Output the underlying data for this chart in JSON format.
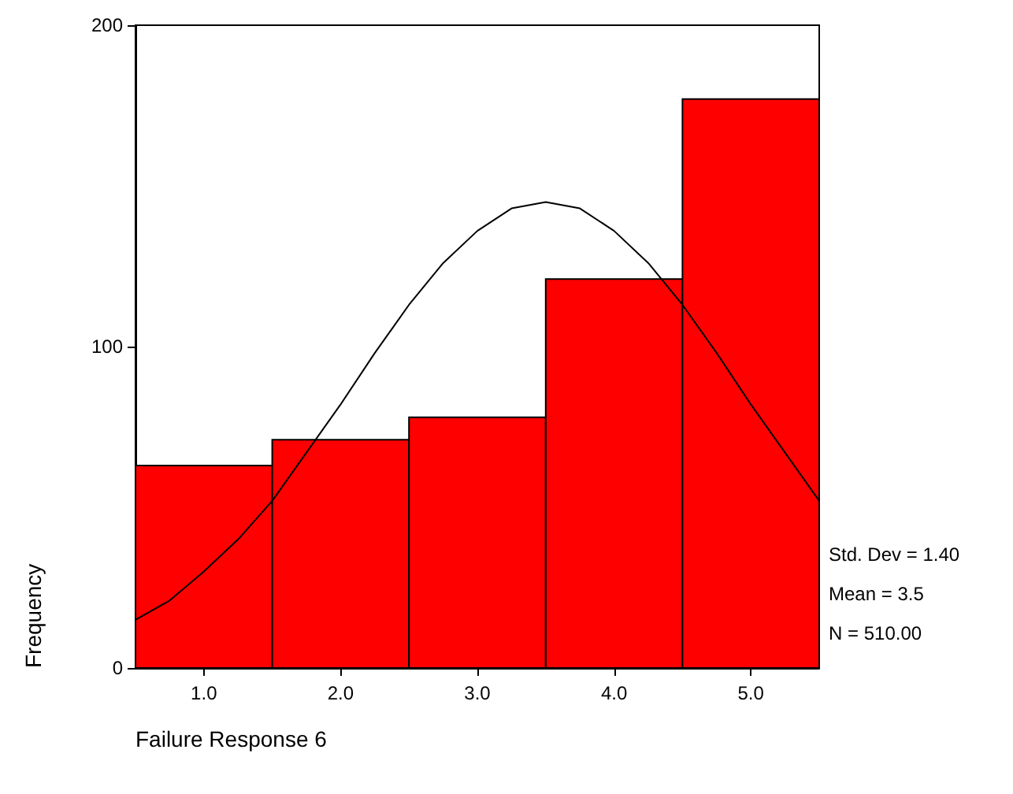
{
  "chart_data": {
    "type": "histogram",
    "xlabel": "Failure Response 6",
    "ylabel": "Frequency",
    "xlim": [
      0.5,
      5.5
    ],
    "xticks": [
      {
        "value": 1,
        "label": "1.0"
      },
      {
        "value": 2,
        "label": "2.0"
      },
      {
        "value": 3,
        "label": "3.0"
      },
      {
        "value": 4,
        "label": "4.0"
      },
      {
        "value": 5,
        "label": "5.0"
      }
    ],
    "ylim": [
      0,
      200
    ],
    "yticks": [
      0,
      100,
      200
    ],
    "grid": false,
    "marker": "none",
    "series": [
      {
        "color": "#ff0000",
        "bins": [
          0.5,
          1.5,
          2.5,
          3.5,
          4.5,
          5.5
        ],
        "values": [
          63,
          71,
          78,
          121,
          177
        ]
      },
      {
        "type": "line",
        "color": "#000000",
        "x": [
          0.5,
          0.75,
          1.0,
          1.25,
          1.5,
          1.75,
          2.0,
          2.25,
          2.5,
          2.75,
          3.0,
          3.25,
          3.5,
          3.75,
          4.0,
          4.25,
          4.5,
          4.75,
          5.0,
          5.25,
          5.5
        ],
        "values": [
          15,
          21,
          30,
          40,
          52,
          67,
          82,
          98,
          113,
          126,
          136,
          143,
          145,
          143,
          136,
          126,
          113,
          98,
          82,
          67,
          52
        ]
      }
    ],
    "annotations": [
      "Std. Dev = 1.40",
      "Mean = 3.5",
      "N = 510.00"
    ]
  }
}
